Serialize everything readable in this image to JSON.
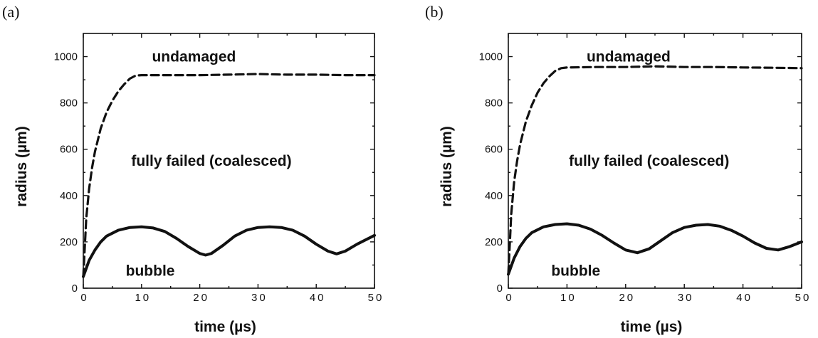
{
  "chart_data": [
    {
      "panel": "(a)",
      "type": "line",
      "xlabel": "time (µs)",
      "ylabel": "radius (µm)",
      "xlim": [
        0,
        50
      ],
      "ylim": [
        0,
        1100
      ],
      "x_ticks": [
        0,
        10,
        20,
        30,
        40,
        50
      ],
      "x_tick_labels": [
        "0",
        "10",
        "20",
        "30",
        "40",
        "50"
      ],
      "y_ticks": [
        0,
        200,
        400,
        600,
        800,
        1000
      ],
      "y_tick_labels": [
        "0",
        "200",
        "400",
        "600",
        "800",
        "1000"
      ],
      "grid": false,
      "annotations": [
        {
          "text": "undamaged",
          "x": 19,
          "y": 1000
        },
        {
          "text": "fully failed (coalesced)",
          "x": 22,
          "y": 550
        },
        {
          "text": "bubble",
          "x": 11.5,
          "y": 75
        }
      ],
      "series": [
        {
          "style": "dashed",
          "x": [
            0,
            0.5,
            1,
            1.5,
            2,
            3,
            4,
            5,
            6,
            7,
            8,
            9,
            10,
            15,
            20,
            25,
            30,
            35,
            40,
            45,
            50
          ],
          "y": [
            50,
            300,
            430,
            520,
            590,
            690,
            760,
            810,
            850,
            880,
            905,
            918,
            920,
            920,
            920,
            922,
            925,
            922,
            922,
            920,
            920
          ]
        },
        {
          "style": "solid",
          "x": [
            0,
            1,
            2,
            3,
            4,
            6,
            8,
            10,
            12,
            14,
            16,
            18,
            20,
            21,
            22,
            24,
            26,
            28,
            30,
            32,
            34,
            36,
            38,
            40,
            42,
            43.5,
            45,
            47,
            50
          ],
          "y": [
            50,
            120,
            165,
            200,
            225,
            250,
            262,
            265,
            260,
            245,
            215,
            180,
            150,
            143,
            150,
            185,
            225,
            250,
            262,
            265,
            262,
            250,
            225,
            190,
            160,
            148,
            160,
            190,
            228
          ]
        }
      ]
    },
    {
      "panel": "(b)",
      "type": "line",
      "xlabel": "time (µs)",
      "ylabel": "radius (µm)",
      "xlim": [
        0,
        50
      ],
      "ylim": [
        0,
        1100
      ],
      "x_ticks": [
        0,
        10,
        20,
        30,
        40,
        50
      ],
      "x_tick_labels": [
        "0",
        "10",
        "20",
        "30",
        "40",
        "50"
      ],
      "y_ticks": [
        0,
        200,
        400,
        600,
        800,
        1000
      ],
      "y_tick_labels": [
        "0",
        "200",
        "400",
        "600",
        "800",
        "1000"
      ],
      "grid": false,
      "annotations": [
        {
          "text": "undamaged",
          "x": 20.5,
          "y": 1000
        },
        {
          "text": "fully failed (coalesced)",
          "x": 24,
          "y": 550
        },
        {
          "text": "bubble",
          "x": 11.5,
          "y": 75
        }
      ],
      "series": [
        {
          "style": "dashed",
          "x": [
            0,
            0.5,
            1,
            1.5,
            2,
            3,
            4,
            5,
            6,
            7,
            8,
            9,
            10,
            15,
            20,
            25,
            30,
            35,
            40,
            45,
            50
          ],
          "y": [
            60,
            320,
            460,
            550,
            620,
            720,
            790,
            845,
            885,
            915,
            938,
            950,
            953,
            955,
            955,
            958,
            955,
            955,
            953,
            952,
            950
          ]
        },
        {
          "style": "solid",
          "x": [
            0,
            1,
            2,
            3,
            4,
            6,
            8,
            10,
            12,
            14,
            16,
            18,
            20,
            22,
            24,
            26,
            28,
            30,
            32,
            34,
            36,
            38,
            40,
            42,
            44,
            46,
            48,
            50
          ],
          "y": [
            60,
            130,
            180,
            215,
            240,
            265,
            275,
            278,
            272,
            255,
            228,
            195,
            165,
            153,
            170,
            205,
            240,
            262,
            272,
            275,
            268,
            250,
            225,
            195,
            172,
            165,
            180,
            200
          ]
        }
      ]
    }
  ]
}
